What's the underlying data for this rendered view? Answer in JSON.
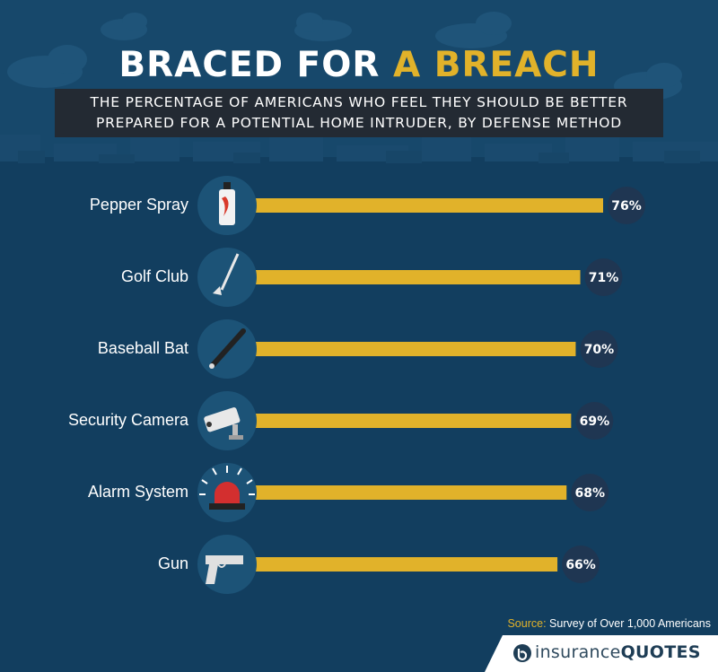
{
  "title": {
    "part1": "BRACED FOR",
    "part2": "A BREACH"
  },
  "subtitle": "THE PERCENTAGE OF AMERICANS WHO FEEL THEY SHOULD BE BETTER PREPARED FOR A POTENTIAL HOME INTRUDER, BY DEFENSE METHOD",
  "source": {
    "label": "Source:",
    "text": "Survey of Over 1,000 Americans"
  },
  "brand": {
    "part1": "insurance",
    "part2": "QUOTES"
  },
  "colors": {
    "background": "#123e5f",
    "bar": "#e1b22a",
    "badge": "#1f3652",
    "icon_circle": "#1c5377",
    "accent": "#e1b22a"
  },
  "chart_data": {
    "type": "bar",
    "orientation": "horizontal",
    "categories": [
      "Pepper Spray",
      "Golf Club",
      "Baseball Bat",
      "Security Camera",
      "Alarm System",
      "Gun"
    ],
    "values": [
      76,
      71,
      70,
      69,
      68,
      66
    ],
    "value_labels": [
      "76%",
      "71%",
      "70%",
      "69%",
      "68%",
      "66%"
    ],
    "icons": [
      "pepper-spray-icon",
      "golf-club-icon",
      "baseball-bat-icon",
      "security-camera-icon",
      "alarm-siren-icon",
      "gun-icon"
    ],
    "xlim": [
      0,
      100
    ],
    "grid": false,
    "legend": "none"
  }
}
